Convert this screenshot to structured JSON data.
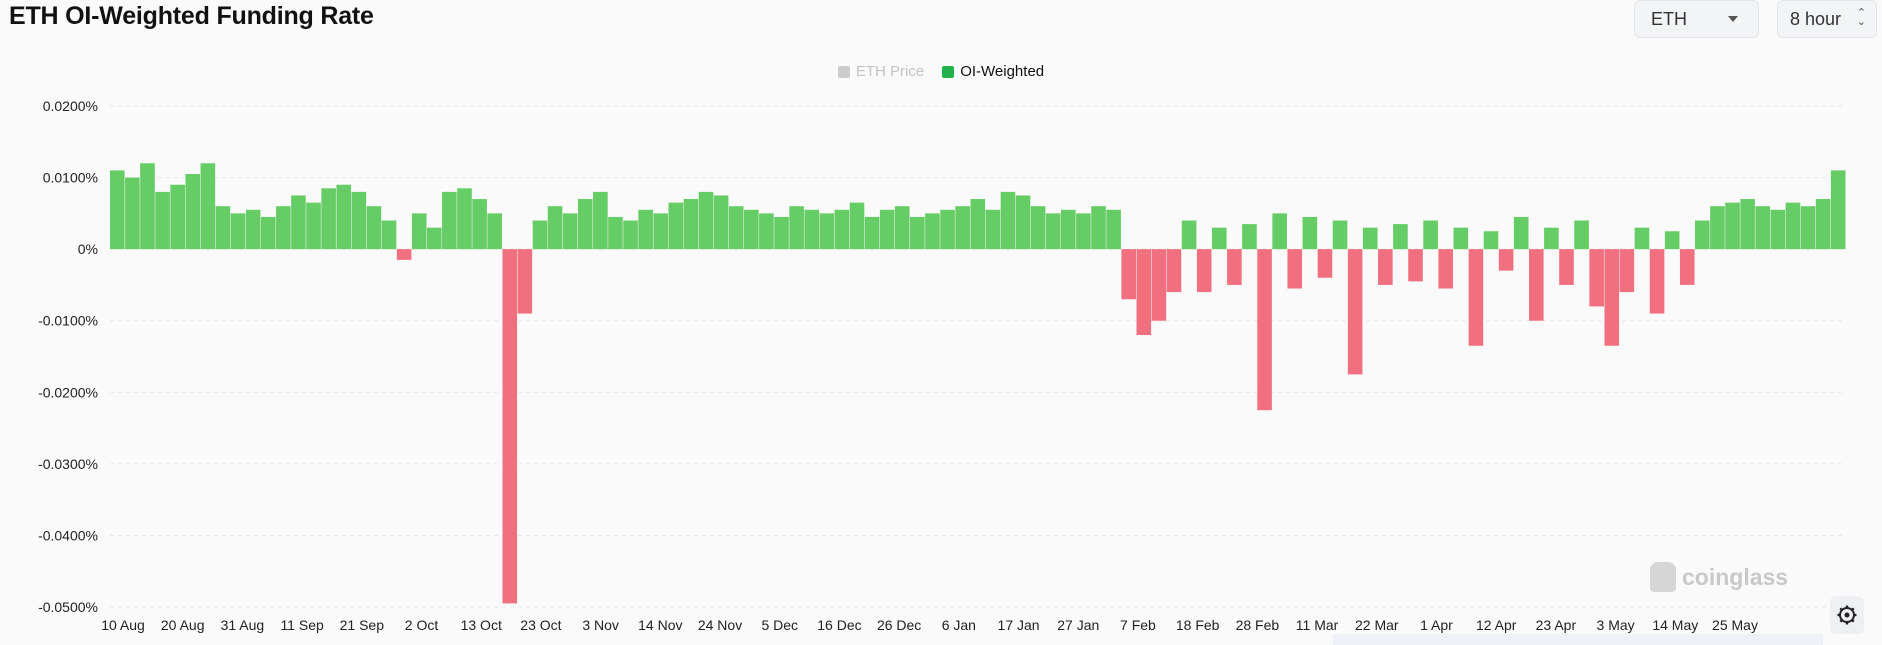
{
  "title": "ETH OI-Weighted Funding Rate",
  "controls": {
    "symbol": "ETH",
    "interval": "8 hour"
  },
  "legend": [
    {
      "label": "ETH Price",
      "color": "#cccccc",
      "active": false
    },
    {
      "label": "OI-Weighted",
      "color": "#22b14c",
      "active": true
    }
  ],
  "watermark": "coinglass",
  "chart_data": {
    "type": "area",
    "title": "ETH OI-Weighted Funding Rate",
    "xlabel": "",
    "ylabel": "",
    "ylim": [
      -0.05,
      0.02
    ],
    "yticks": [
      0.02,
      0.01,
      0,
      -0.01,
      -0.02,
      -0.03,
      -0.04,
      -0.05
    ],
    "ytick_labels": [
      "0.0200%",
      "0.0100%",
      "0%",
      "-0.0100%",
      "-0.0200%",
      "-0.0300%",
      "-0.0400%",
      "-0.0500%"
    ],
    "xtick_labels": [
      "10 Aug",
      "20 Aug",
      "31 Aug",
      "11 Sep",
      "21 Sep",
      "2 Oct",
      "13 Oct",
      "23 Oct",
      "3 Nov",
      "14 Nov",
      "24 Nov",
      "5 Dec",
      "16 Dec",
      "26 Dec",
      "6 Jan",
      "17 Jan",
      "27 Jan",
      "7 Feb",
      "18 Feb",
      "28 Feb",
      "11 Mar",
      "22 Mar",
      "1 Apr",
      "12 Apr",
      "23 Apr",
      "3 May",
      "14 May",
      "25 May"
    ],
    "positive_color": "#66cc66",
    "negative_color": "#f07080",
    "grid": true,
    "series": [
      {
        "name": "OI-Weighted",
        "x": [
          "10 Aug",
          "12 Aug",
          "14 Aug",
          "16 Aug",
          "18 Aug",
          "20 Aug",
          "22 Aug",
          "24 Aug",
          "26 Aug",
          "28 Aug",
          "31 Aug",
          "3 Sep",
          "6 Sep",
          "9 Sep",
          "11 Sep",
          "14 Sep",
          "17 Sep",
          "19 Sep",
          "21 Sep",
          "23 Sep",
          "26 Sep",
          "29 Sep",
          "2 Oct",
          "5 Oct",
          "8 Oct",
          "11 Oct",
          "13 Oct",
          "14 Oct",
          "16 Oct",
          "19 Oct",
          "21 Oct",
          "23 Oct",
          "26 Oct",
          "29 Oct",
          "31 Oct",
          "3 Nov",
          "6 Nov",
          "9 Nov",
          "12 Nov",
          "14 Nov",
          "17 Nov",
          "20 Nov",
          "22 Nov",
          "24 Nov",
          "27 Nov",
          "30 Nov",
          "2 Dec",
          "5 Dec",
          "8 Dec",
          "11 Dec",
          "14 Dec",
          "16 Dec",
          "19 Dec",
          "22 Dec",
          "24 Dec",
          "26 Dec",
          "29 Dec",
          "1 Jan",
          "4 Jan",
          "6 Jan",
          "9 Jan",
          "12 Jan",
          "15 Jan",
          "17 Jan",
          "20 Jan",
          "23 Jan",
          "25 Jan",
          "27 Jan",
          "29 Jan",
          "31 Jan",
          "3 Feb",
          "5 Feb",
          "7 Feb",
          "10 Feb",
          "13 Feb",
          "16 Feb",
          "18 Feb",
          "20 Feb",
          "23 Feb",
          "26 Feb",
          "28 Feb",
          "3 Mar",
          "6 Mar",
          "9 Mar",
          "11 Mar",
          "14 Mar",
          "17 Mar",
          "20 Mar",
          "22 Mar",
          "25 Mar",
          "27 Mar",
          "30 Mar",
          "1 Apr",
          "4 Apr",
          "7 Apr",
          "10 Apr",
          "12 Apr",
          "15 Apr",
          "18 Apr",
          "21 Apr",
          "23 Apr",
          "26 Apr",
          "29 Apr",
          "1 May",
          "3 May",
          "6 May",
          "9 May",
          "12 May",
          "14 May",
          "17 May",
          "20 May",
          "23 May",
          "25 May",
          "28 May",
          "30 May"
        ],
        "values": [
          0.011,
          0.01,
          0.012,
          0.008,
          0.009,
          0.0105,
          0.012,
          0.006,
          0.005,
          0.0055,
          0.0045,
          0.006,
          0.0075,
          0.0065,
          0.0085,
          0.009,
          0.008,
          0.006,
          0.004,
          -0.0015,
          0.005,
          0.003,
          0.008,
          0.0085,
          0.007,
          0.005,
          -0.0495,
          -0.009,
          0.004,
          0.006,
          0.005,
          0.007,
          0.008,
          0.0045,
          0.004,
          0.0055,
          0.005,
          0.0065,
          0.007,
          0.008,
          0.0075,
          0.006,
          0.0055,
          0.005,
          0.0045,
          0.006,
          0.0055,
          0.005,
          0.0055,
          0.0065,
          0.0045,
          0.0055,
          0.006,
          0.0045,
          0.005,
          0.0055,
          0.006,
          0.007,
          0.0055,
          0.008,
          0.0075,
          0.006,
          0.005,
          0.0055,
          0.005,
          0.006,
          0.0055,
          -0.007,
          -0.012,
          -0.01,
          -0.006,
          0.004,
          -0.006,
          0.003,
          -0.005,
          0.0035,
          -0.0225,
          0.005,
          -0.0055,
          0.0045,
          -0.004,
          0.004,
          -0.0175,
          0.003,
          -0.005,
          0.0035,
          -0.0045,
          0.004,
          -0.0055,
          0.003,
          -0.0135,
          0.0025,
          -0.003,
          0.0045,
          -0.01,
          0.003,
          -0.005,
          0.004,
          -0.008,
          -0.0135,
          -0.006,
          0.003,
          -0.009,
          0.0025,
          -0.005,
          0.004,
          0.006,
          0.0065,
          0.007,
          0.006,
          0.0055,
          0.0065,
          0.006,
          0.007,
          0.011
        ]
      }
    ]
  }
}
